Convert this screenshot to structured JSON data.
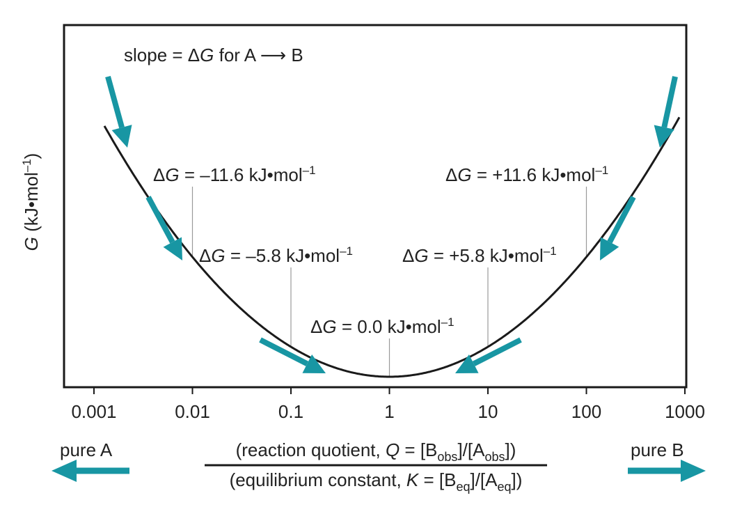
{
  "chart_data": {
    "type": "line",
    "xscale": "log",
    "xlim": [
      0.001,
      1000
    ],
    "x_ticks": [
      {
        "value": 0.001,
        "label": "0.001"
      },
      {
        "value": 0.01,
        "label": "0.01"
      },
      {
        "value": 0.1,
        "label": "0.1"
      },
      {
        "value": 1,
        "label": "1"
      },
      {
        "value": 10,
        "label": "10"
      },
      {
        "value": 100,
        "label": "100"
      },
      {
        "value": 1000,
        "label": "1000"
      }
    ],
    "ylabel": {
      "symbol": "G",
      "rest": " (kJ•mol",
      "sup": "–1",
      "close": ")"
    },
    "xlabel": {
      "numerator": {
        "pre": "(reaction quotient, ",
        "sym": "Q",
        "mid": " = [B",
        "sub1": "obs",
        "mid2": "]/[A",
        "sub2": "obs",
        "post": "])"
      },
      "denominator": {
        "pre": "(equilibrium constant, ",
        "sym": "K",
        "mid": " = [B",
        "sub1": "eq",
        "mid2": "]/[A",
        "sub2": "eq",
        "post": "])"
      }
    },
    "curve_note": {
      "pre": "slope = Δ",
      "sym": "G",
      "post": " for A ⟶ B"
    },
    "annotations": [
      {
        "ratio": 0.01,
        "delta": "Δ",
        "sym": "G",
        "text": " = –11.6 kJ•mol",
        "sup": "–1"
      },
      {
        "ratio": 0.1,
        "delta": "Δ",
        "sym": "G",
        "text": " = –5.8 kJ•mol",
        "sup": "–1"
      },
      {
        "ratio": 1,
        "delta": "Δ",
        "sym": "G",
        "text": " = 0.0 kJ•mol",
        "sup": "–1"
      },
      {
        "ratio": 10,
        "delta": "Δ",
        "sym": "G",
        "text": " = +5.8 kJ•mol",
        "sup": "–1"
      },
      {
        "ratio": 100,
        "delta": "Δ",
        "sym": "G",
        "text": " = +11.6 kJ•mol",
        "sup": "–1"
      }
    ],
    "direction_labels": {
      "left": "pure A",
      "right": "pure B"
    },
    "colors": {
      "curve": "#1a1a1a",
      "arrow": "#1896a3",
      "frame": "#1a1a1a",
      "guide": "#999999"
    }
  }
}
